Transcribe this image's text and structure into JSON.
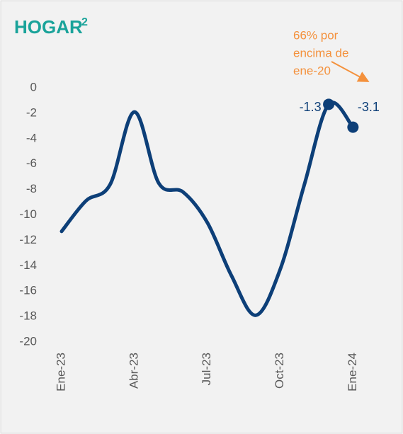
{
  "chart_data": {
    "type": "line",
    "title": "HOGAR",
    "title_superscript": "2",
    "annotation": [
      "66% por",
      "encima de",
      "ene-20"
    ],
    "categories": [
      "Ene-23",
      null,
      null,
      "Abr-23",
      null,
      null,
      "Jul-23",
      null,
      null,
      "Oct-23",
      null,
      null,
      "Ene-24"
    ],
    "series": [
      {
        "color": "#0d3f78",
        "values": [
          -11.3,
          -8.9,
          -7.6,
          -1.9,
          -7.5,
          -8.2,
          -10.6,
          -14.8,
          -17.9,
          -14.3,
          -7.6,
          -1.3,
          -3.1
        ]
      }
    ],
    "labeled_points": [
      11,
      12
    ],
    "ylim": [
      -20,
      0
    ],
    "yticks": [
      0,
      -2,
      -4,
      -6,
      -8,
      -10,
      -12,
      -14,
      -16,
      -18,
      -20
    ],
    "grid": false,
    "title_color": "#1aa39a",
    "annotation_color": "#f4913c"
  }
}
